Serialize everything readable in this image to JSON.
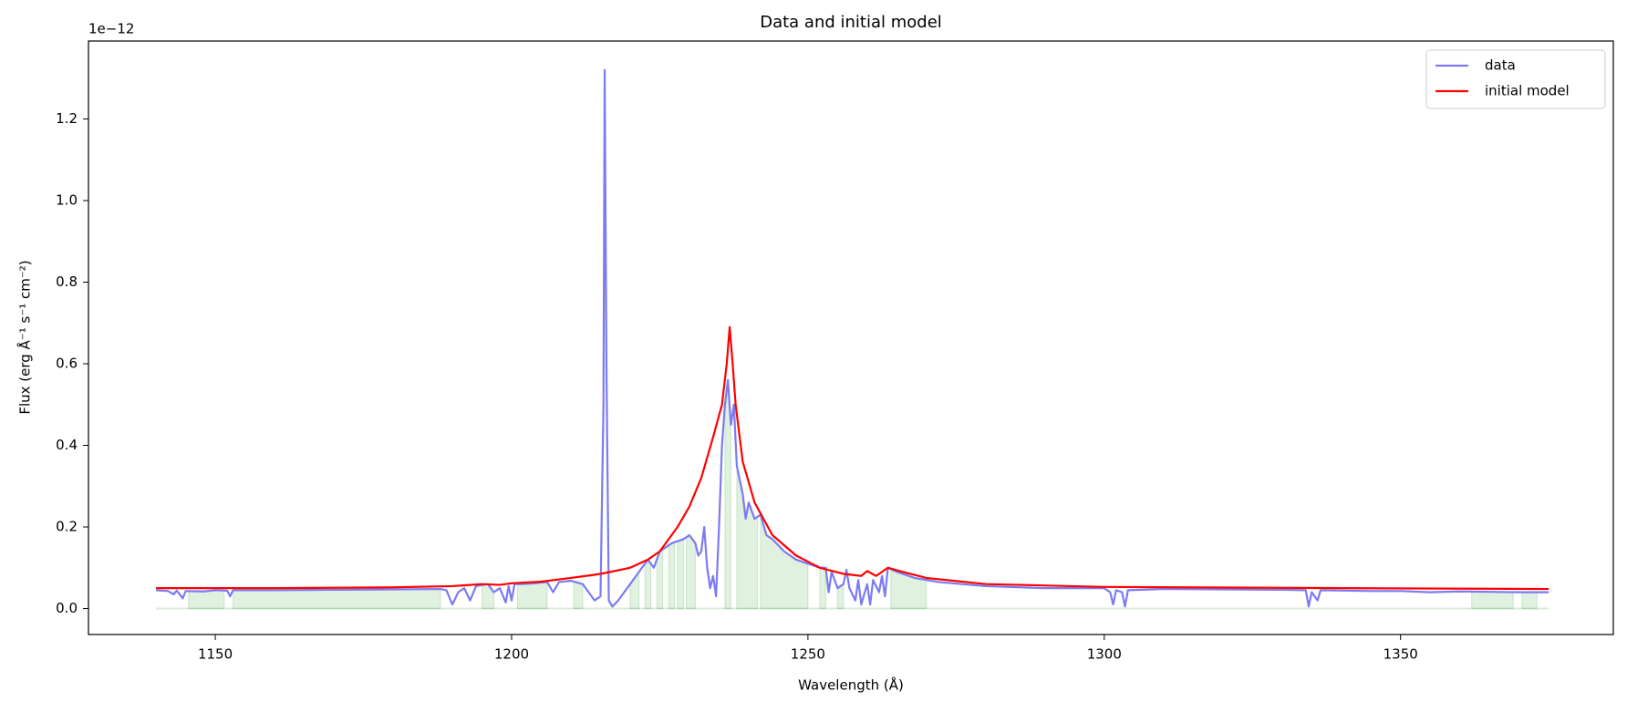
{
  "chart_data": {
    "type": "line",
    "title": "Data and initial model",
    "xlabel": "Wavelength (Å)",
    "ylabel": "Flux (erg Å⁻¹ s⁻¹ cm⁻²)",
    "y_offset_text": "1e−12",
    "xlim": [
      1128.6,
      1385.9
    ],
    "ylim": [
      -0.0636,
      1.391
    ],
    "xticks": [
      1150,
      1200,
      1250,
      1300,
      1350
    ],
    "yticks": [
      {
        "value": 0,
        "label": "0.0"
      },
      0.2,
      0.4,
      0.6,
      0.8,
      {
        "value": 1,
        "label": "1.0"
      },
      1.2
    ],
    "grid": false,
    "legend_position": "upper-right",
    "series": [
      {
        "name": "data",
        "color": "#7b7bf2",
        "x": [
          1140,
          1142,
          1143,
          1143.5,
          1144.5,
          1145,
          1148,
          1150,
          1152,
          1152.5,
          1153,
          1160,
          1170,
          1180,
          1188,
          1189,
          1190,
          1191,
          1192,
          1193,
          1194,
          1196,
          1197,
          1198,
          1199,
          1199.5,
          1200,
          1200.5,
          1202,
          1204,
          1206,
          1207,
          1208,
          1210,
          1212,
          1213,
          1214,
          1215,
          1215.5,
          1215.7,
          1216,
          1216.4,
          1217,
          1218,
          1219,
          1220,
          1221,
          1222,
          1223,
          1224,
          1225,
          1227,
          1229,
          1230,
          1231,
          1231.5,
          1232,
          1232.5,
          1233,
          1233.5,
          1234,
          1234.5,
          1235,
          1235.5,
          1236,
          1236.5,
          1237,
          1237.5,
          1238,
          1239,
          1239.5,
          1240,
          1241,
          1242,
          1243,
          1244,
          1246,
          1248,
          1250,
          1252,
          1253,
          1253.5,
          1254,
          1255,
          1256,
          1256.5,
          1257,
          1258,
          1258.5,
          1259,
          1260,
          1260.5,
          1261,
          1262,
          1262.5,
          1263,
          1263.5,
          1265,
          1268,
          1272,
          1280,
          1290,
          1300,
          1301,
          1301.5,
          1302,
          1303,
          1303.5,
          1304,
          1310,
          1320,
          1330,
          1334,
          1334.5,
          1335,
          1336,
          1336.5,
          1345,
          1350,
          1355,
          1360,
          1370,
          1375
        ],
        "values": [
          0.045,
          0.043,
          0.035,
          0.044,
          0.025,
          0.043,
          0.042,
          0.045,
          0.044,
          0.03,
          0.045,
          0.045,
          0.046,
          0.047,
          0.048,
          0.045,
          0.01,
          0.04,
          0.05,
          0.02,
          0.055,
          0.06,
          0.04,
          0.05,
          0.015,
          0.055,
          0.02,
          0.06,
          0.06,
          0.062,
          0.065,
          0.04,
          0.065,
          0.068,
          0.06,
          0.04,
          0.02,
          0.03,
          0.5,
          1.32,
          0.6,
          0.02,
          0.005,
          0.02,
          0.04,
          0.06,
          0.08,
          0.1,
          0.12,
          0.1,
          0.14,
          0.16,
          0.17,
          0.18,
          0.16,
          0.13,
          0.14,
          0.2,
          0.1,
          0.05,
          0.08,
          0.03,
          0.2,
          0.4,
          0.5,
          0.56,
          0.45,
          0.5,
          0.35,
          0.28,
          0.22,
          0.26,
          0.22,
          0.23,
          0.18,
          0.17,
          0.14,
          0.12,
          0.11,
          0.1,
          0.1,
          0.04,
          0.09,
          0.05,
          0.06,
          0.095,
          0.05,
          0.02,
          0.07,
          0.01,
          0.06,
          0.01,
          0.07,
          0.04,
          0.08,
          0.03,
          0.1,
          0.09,
          0.075,
          0.065,
          0.055,
          0.05,
          0.05,
          0.04,
          0.01,
          0.045,
          0.04,
          0.005,
          0.045,
          0.048,
          0.047,
          0.046,
          0.045,
          0.005,
          0.04,
          0.02,
          0.045,
          0.043,
          0.043,
          0.04,
          0.042,
          0.04,
          0.04
        ]
      },
      {
        "name": "initial model",
        "color": "#ff0000",
        "x": [
          1140,
          1160,
          1180,
          1190,
          1195,
          1198,
          1200,
          1205,
          1210,
          1215,
          1220,
          1223,
          1225,
          1228,
          1230,
          1232,
          1234,
          1235.5,
          1236.3,
          1236.8,
          1237.3,
          1237.8,
          1239,
          1241,
          1244,
          1248,
          1252,
          1256,
          1259,
          1260,
          1261.5,
          1263.5,
          1266,
          1270,
          1280,
          1300,
          1340,
          1375
        ],
        "values": [
          0.05,
          0.05,
          0.052,
          0.055,
          0.06,
          0.058,
          0.062,
          0.066,
          0.075,
          0.085,
          0.1,
          0.12,
          0.14,
          0.2,
          0.25,
          0.32,
          0.42,
          0.5,
          0.6,
          0.69,
          0.6,
          0.5,
          0.36,
          0.26,
          0.18,
          0.13,
          0.1,
          0.085,
          0.08,
          0.092,
          0.08,
          0.1,
          0.09,
          0.075,
          0.06,
          0.053,
          0.05,
          0.048
        ]
      }
    ],
    "shaded_regions": {
      "color": "#2ca02c",
      "ranges": [
        [
          1145.5,
          1151.5
        ],
        [
          1153,
          1188
        ],
        [
          1195,
          1197
        ],
        [
          1201,
          1206
        ],
        [
          1210.5,
          1212
        ],
        [
          1220,
          1221.5
        ],
        [
          1222.5,
          1223.5
        ],
        [
          1224.5,
          1225.5
        ],
        [
          1226.5,
          1227.5
        ],
        [
          1228,
          1229
        ],
        [
          1229.5,
          1231
        ],
        [
          1236,
          1237
        ],
        [
          1238,
          1241.5
        ],
        [
          1242,
          1250
        ],
        [
          1252,
          1253
        ],
        [
          1255,
          1256
        ],
        [
          1264,
          1270
        ],
        [
          1362,
          1369
        ],
        [
          1370.5,
          1373
        ]
      ]
    }
  }
}
